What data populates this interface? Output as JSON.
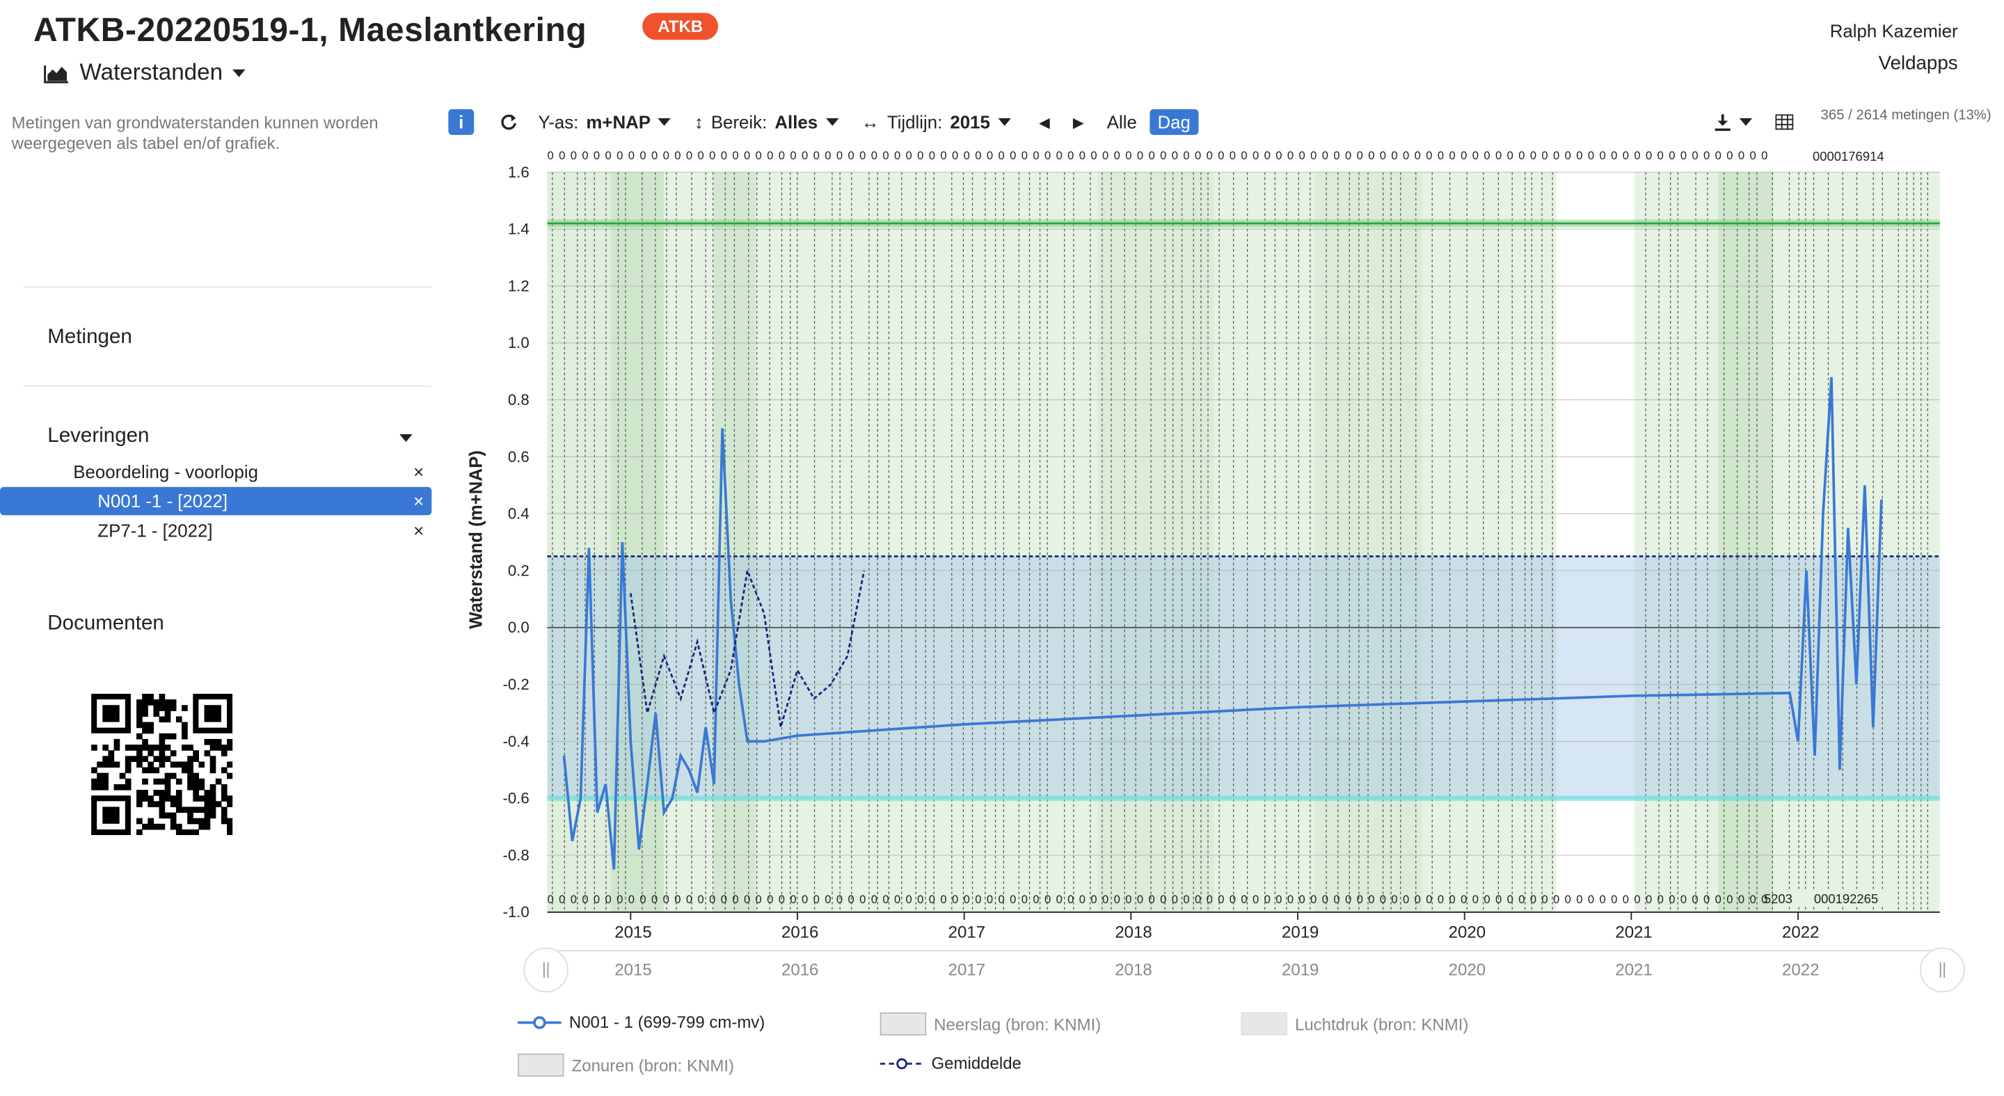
{
  "header": {
    "title": "ATKB-20220519-1, Maeslantkering",
    "badge": "ATKB",
    "user": "Ralph Kazemier",
    "org": "Veldapps",
    "view": "Waterstanden"
  },
  "sidebar": {
    "description": "Metingen van grondwaterstanden kunnen worden weergegeven als tabel en/of grafiek.",
    "metingen": "Metingen",
    "leveringen": "Leveringen",
    "items": [
      {
        "label": "Beoordeling - voorlopig",
        "close": "×"
      },
      {
        "label": "N001 -1 - [2022]",
        "close": "×",
        "selected": true
      },
      {
        "label": "ZP7-1 - [2022]",
        "close": "×"
      }
    ],
    "documenten": "Documenten"
  },
  "toolbar": {
    "info": "i",
    "yas_label": "Y-as:",
    "yas_value": "m+NAP",
    "bereik_label": "Bereik:",
    "bereik_value": "Alles",
    "tijdlijn_label": "Tijdlijn:",
    "tijdlijn_value": "2015",
    "alle": "Alle",
    "dag": "Dag",
    "counter": "365 / 2614 metingen (13%)"
  },
  "chart_data": {
    "type": "line",
    "ylabel": "Waterstand (m+NAP)",
    "ylim": [
      -1.0,
      1.6
    ],
    "yticks": [
      "1.6",
      "1.4",
      "1.2",
      "1.0",
      "0.8",
      "0.6",
      "0.4",
      "0.2",
      "0.0",
      "-0.2",
      "-0.4",
      "-0.6",
      "-0.8",
      "-1.0"
    ],
    "x_ticks": [
      "2015",
      "2016",
      "2017",
      "2018",
      "2019",
      "2020",
      "2021",
      "2022"
    ],
    "navigator_ticks": [
      "2015",
      "2016",
      "2017",
      "2018",
      "2019",
      "2020",
      "2021",
      "2022"
    ],
    "top_label_last": "0000176914",
    "bottom_label_last": "000192265",
    "bottom_label_mid": "5203",
    "reference_lines": {
      "upper_green": 1.42,
      "mean_dashed": 0.25,
      "lower_cyan": -0.6
    },
    "series": [
      {
        "name": "N001 - 1 (699-799 cm-mv)",
        "color": "#3a78d6",
        "x": [
          2014.6,
          2014.65,
          2014.7,
          2014.75,
          2014.8,
          2014.85,
          2014.9,
          2014.95,
          2015.0,
          2015.05,
          2015.1,
          2015.15,
          2015.2,
          2015.25,
          2015.3,
          2015.35,
          2015.4,
          2015.45,
          2015.5,
          2015.55,
          2015.6,
          2015.65,
          2015.7,
          2015.8,
          2016.0,
          2017.0,
          2018.0,
          2019.0,
          2020.0,
          2021.0,
          2021.95,
          2022.0,
          2022.05,
          2022.1,
          2022.15,
          2022.2,
          2022.25,
          2022.3,
          2022.35,
          2022.4,
          2022.45,
          2022.5
        ],
        "y": [
          -0.45,
          -0.75,
          -0.6,
          0.28,
          -0.65,
          -0.55,
          -0.85,
          0.3,
          -0.4,
          -0.78,
          -0.55,
          -0.3,
          -0.65,
          -0.6,
          -0.45,
          -0.5,
          -0.58,
          -0.35,
          -0.55,
          0.7,
          0.1,
          -0.2,
          -0.4,
          -0.4,
          -0.38,
          -0.34,
          -0.31,
          -0.28,
          -0.26,
          -0.24,
          -0.23,
          -0.4,
          0.2,
          -0.45,
          0.4,
          0.88,
          -0.5,
          0.35,
          -0.2,
          0.5,
          -0.35,
          0.45
        ]
      },
      {
        "name": "Gemiddelde",
        "color": "#1a237e",
        "x": [
          2015.0,
          2015.1,
          2015.2,
          2015.3,
          2015.4,
          2015.5,
          2015.6,
          2015.7,
          2015.8,
          2015.9,
          2016.0,
          2016.1,
          2016.2,
          2016.3,
          2016.4
        ],
        "y": [
          0.12,
          -0.3,
          -0.1,
          -0.25,
          -0.05,
          -0.3,
          -0.15,
          0.2,
          0.05,
          -0.35,
          -0.15,
          -0.25,
          -0.2,
          -0.1,
          0.2
        ]
      }
    ]
  },
  "legend": [
    {
      "label": "N001 - 1 (699-799 cm-mv)",
      "kind": "line"
    },
    {
      "label": "Neerslag (bron: KNMI)",
      "kind": "box"
    },
    {
      "label": "Luchtdruk (bron: KNMI)",
      "kind": "box"
    },
    {
      "label": "Zonuren (bron: KNMI)",
      "kind": "box"
    },
    {
      "label": "Gemiddelde",
      "kind": "dash"
    }
  ]
}
